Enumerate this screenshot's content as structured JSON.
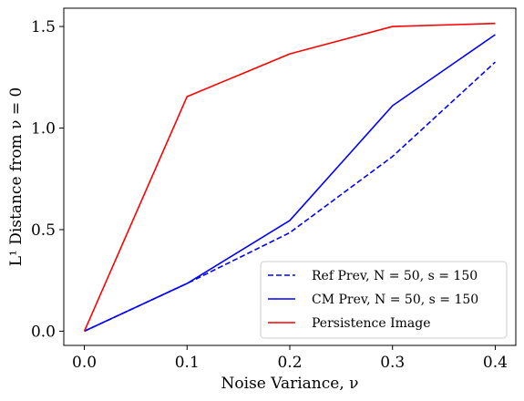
{
  "chart_data": {
    "type": "line",
    "xlabel": "Noise Variance, ν",
    "ylabel": "L¹ Distance from ν = 0",
    "xlim": [
      -0.02,
      0.42
    ],
    "ylim": [
      -0.07,
      1.59
    ],
    "xticks": [
      0.0,
      0.1,
      0.2,
      0.3,
      0.4
    ],
    "xtick_labels": [
      "0.0",
      "0.1",
      "0.2",
      "0.3",
      "0.4"
    ],
    "yticks": [
      0.0,
      0.5,
      1.0,
      1.5
    ],
    "ytick_labels": [
      "0.0",
      "0.5",
      "1.0",
      "1.5"
    ],
    "grid": false,
    "legend_position": "lower-right",
    "x": [
      0.0,
      0.1,
      0.2,
      0.3,
      0.4
    ],
    "series": [
      {
        "name": "Ref Prev, N = 50, s = 150",
        "values": [
          0.0,
          0.235,
          0.485,
          0.86,
          1.325
        ],
        "color": "#0000ff",
        "style": "dashed"
      },
      {
        "name": "CM Prev, N = 50, s = 150",
        "values": [
          0.0,
          0.235,
          0.545,
          1.11,
          1.46
        ],
        "color": "#0000ff",
        "style": "solid"
      },
      {
        "name": "Persistence Image",
        "values": [
          0.0,
          1.155,
          1.365,
          1.5,
          1.515
        ],
        "color": "#ff0000",
        "style": "solid"
      }
    ]
  }
}
